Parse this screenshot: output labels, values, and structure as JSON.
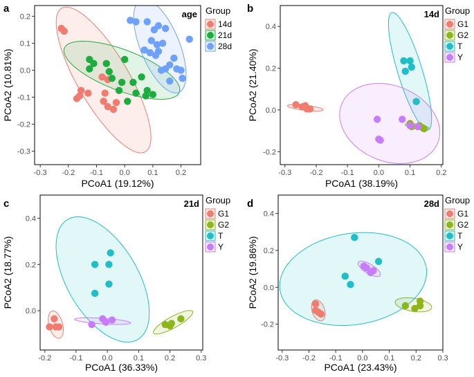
{
  "chart_data": [
    {
      "panel": "a",
      "type": "scatter",
      "title": "age",
      "xlabel": "PCoA1 (19.12%)",
      "ylabel": "PCoA2 (10.81%)",
      "xlim": [
        -0.32,
        0.27
      ],
      "ylim": [
        -0.35,
        0.24
      ],
      "xticks": [
        -0.3,
        -0.2,
        -0.1,
        0.0,
        0.1,
        0.2
      ],
      "xtick_labels": [
        "-0.3",
        "-0.2",
        "-0.1",
        "0.0",
        "0.1",
        "0.2"
      ],
      "yticks": [
        -0.3,
        -0.2,
        -0.1,
        0.0,
        0.1,
        0.2
      ],
      "ytick_labels": [
        "-0.3",
        "-0.2",
        "-0.1",
        "0.0",
        "0.1",
        "0.2"
      ],
      "legend_title": "Group",
      "groups": [
        {
          "name": "14d",
          "color": "#F07C70",
          "ellipse": {
            "cx": -0.075,
            "cy": -0.036,
            "rx": 0.305,
            "ry": 0.092,
            "angle_deg": -61
          },
          "points": [
            [
              -0.225,
              0.155
            ],
            [
              -0.215,
              0.145
            ],
            [
              -0.155,
              -0.075
            ],
            [
              -0.16,
              -0.095
            ],
            [
              -0.17,
              -0.105
            ],
            [
              -0.13,
              -0.085
            ],
            [
              -0.08,
              -0.025
            ],
            [
              -0.06,
              -0.035
            ],
            [
              -0.07,
              -0.085
            ],
            [
              -0.075,
              -0.115
            ],
            [
              -0.06,
              -0.135
            ],
            [
              -0.04,
              -0.145
            ],
            [
              -0.03,
              -0.12
            ]
          ]
        },
        {
          "name": "21d",
          "color": "#1DAD3F",
          "ellipse": {
            "cx": -0.01,
            "cy": 0.0,
            "rx": 0.22,
            "ry": 0.075,
            "angle_deg": -22
          },
          "points": [
            [
              -0.125,
              0.04
            ],
            [
              -0.11,
              0.025
            ],
            [
              -0.125,
              0.005
            ],
            [
              -0.065,
              0.025
            ],
            [
              -0.055,
              -0.005
            ],
            [
              -0.045,
              -0.03
            ],
            [
              -0.02,
              -0.075
            ],
            [
              -0.01,
              -0.045
            ],
            [
              0.0,
              0.04
            ],
            [
              0.01,
              -0.115
            ],
            [
              0.03,
              -0.045
            ],
            [
              0.04,
              -0.085
            ],
            [
              0.06,
              -0.025
            ],
            [
              0.08,
              -0.075
            ],
            [
              0.1,
              -0.09
            ],
            [
              0.075,
              -0.095
            ]
          ]
        },
        {
          "name": "28d",
          "color": "#6EA1FA",
          "ellipse": {
            "cx": 0.125,
            "cy": 0.09,
            "rx": 0.185,
            "ry": 0.07,
            "angle_deg": -69
          },
          "points": [
            [
              0.02,
              0.185
            ],
            [
              0.04,
              0.18
            ],
            [
              0.08,
              0.18
            ],
            [
              0.105,
              0.15
            ],
            [
              0.12,
              0.165
            ],
            [
              0.145,
              0.155
            ],
            [
              0.095,
              0.11
            ],
            [
              0.115,
              0.095
            ],
            [
              0.135,
              0.1
            ],
            [
              0.23,
              0.115
            ],
            [
              0.07,
              0.075
            ],
            [
              0.12,
              0.07
            ],
            [
              0.09,
              0.065
            ],
            [
              0.11,
              0.055
            ],
            [
              0.175,
              0.045
            ],
            [
              0.145,
              0.005
            ],
            [
              0.16,
              0.02
            ],
            [
              0.185,
              0.005
            ],
            [
              0.2,
              0.0
            ],
            [
              0.205,
              -0.03
            ],
            [
              0.13,
              0.0
            ],
            [
              0.16,
              -0.04
            ]
          ]
        }
      ]
    },
    {
      "panel": "b",
      "type": "scatter",
      "title": "14d",
      "xlabel": "PCoA1 (38.19%)",
      "ylabel": "PCoA2 (21.40%)",
      "xlim": [
        -0.315,
        0.205
      ],
      "ylim": [
        -0.262,
        0.5
      ],
      "xticks": [
        -0.3,
        -0.2,
        -0.1,
        0.0,
        0.1,
        0.2
      ],
      "xtick_labels": [
        "-0.3",
        "-0.2",
        "-0.1",
        "0.0",
        "0.1",
        "0.2"
      ],
      "yticks": [
        -0.2,
        0.0,
        0.2,
        0.4
      ],
      "ytick_labels": [
        "-0.2",
        "0.0",
        "0.2",
        "0.4"
      ],
      "legend_title": "Group",
      "groups": [
        {
          "name": "G1",
          "color": "#F07C70",
          "ellipse": {
            "cx": -0.235,
            "cy": 0.01,
            "rx": 0.058,
            "ry": 0.012,
            "angle_deg": -10
          },
          "points": [
            [
              -0.265,
              0.025
            ],
            [
              -0.245,
              0.015
            ],
            [
              -0.235,
              0.02
            ],
            [
              -0.22,
              0.005
            ],
            [
              -0.23,
              0.005
            ]
          ]
        },
        {
          "name": "G2",
          "color": "#8DB51C",
          "ellipse": {
            "cx": 0.123,
            "cy": -0.08,
            "rx": 0.04,
            "ry": 0.012,
            "angle_deg": -15
          },
          "points": [
            [
              0.1,
              -0.065
            ],
            [
              0.105,
              -0.08
            ],
            [
              0.13,
              -0.075
            ],
            [
              0.14,
              -0.085
            ],
            [
              0.145,
              -0.09
            ]
          ]
        },
        {
          "name": "T",
          "color": "#20BEC6",
          "ellipse": {
            "cx": 0.1,
            "cy": 0.185,
            "rx": 0.287,
            "ry": 0.04,
            "angle_deg": -78.6
          },
          "points": [
            [
              0.08,
              0.235
            ],
            [
              0.1,
              0.235
            ],
            [
              0.085,
              0.185
            ],
            [
              0.105,
              0.205
            ],
            [
              0.12,
              0.04
            ]
          ]
        },
        {
          "name": "Y",
          "color": "#C77CFA",
          "ellipse": {
            "cx": 0.035,
            "cy": -0.065,
            "rx": 0.15,
            "ry": 0.2,
            "angle_deg": 25
          },
          "points": [
            [
              -0.005,
              -0.045
            ],
            [
              0.0,
              -0.14
            ],
            [
              0.005,
              -0.145
            ],
            [
              0.075,
              -0.045
            ],
            [
              0.1,
              -0.075
            ],
            [
              0.125,
              -0.08
            ]
          ]
        }
      ]
    },
    {
      "panel": "c",
      "type": "scatter",
      "title": "21d",
      "xlabel": "PCoA1 (36.33%)",
      "ylabel": "PCoA2 (18.77%)",
      "xlim": [
        -0.215,
        0.305
      ],
      "ylim": [
        -0.17,
        0.5
      ],
      "xticks": [
        -0.2,
        -0.1,
        0.0,
        0.1,
        0.2,
        0.3
      ],
      "xtick_labels": [
        "-0.2",
        "-0.1",
        "0.0",
        "0.1",
        "0.2",
        "0.3"
      ],
      "yticks": [
        0.0,
        0.2,
        0.4
      ],
      "ytick_labels": [
        "0.0",
        "0.2",
        "0.4"
      ],
      "legend_title": "Group",
      "groups": [
        {
          "name": "G1",
          "color": "#F07C70",
          "ellipse": {
            "cx": -0.165,
            "cy": -0.06,
            "rx": 0.06,
            "ry": 0.022,
            "angle_deg": -80
          },
          "points": [
            [
              -0.185,
              -0.07
            ],
            [
              -0.17,
              -0.035
            ],
            [
              -0.165,
              -0.07
            ],
            [
              -0.155,
              -0.07
            ]
          ]
        },
        {
          "name": "G2",
          "color": "#8DB51C",
          "ellipse": {
            "cx": 0.21,
            "cy": -0.05,
            "rx": 0.078,
            "ry": 0.022,
            "angle_deg": 38
          },
          "points": [
            [
              0.185,
              -0.06
            ],
            [
              0.2,
              -0.065
            ],
            [
              0.205,
              -0.055
            ],
            [
              0.235,
              -0.035
            ]
          ]
        },
        {
          "name": "T",
          "color": "#20BEC6",
          "ellipse": {
            "cx": -0.015,
            "cy": 0.135,
            "rx": 0.285,
            "ry": 0.12,
            "angle_deg": -70
          },
          "points": [
            [
              -0.04,
              0.2
            ],
            [
              -0.04,
              0.075
            ],
            [
              0.005,
              0.115
            ],
            [
              0.01,
              0.25
            ],
            [
              0.005,
              0.2
            ]
          ]
        },
        {
          "name": "Y",
          "color": "#C77CFA",
          "ellipse": {
            "cx": -0.015,
            "cy": -0.045,
            "rx": 0.09,
            "ry": 0.012,
            "angle_deg": -5
          },
          "points": [
            [
              -0.05,
              -0.06
            ],
            [
              -0.015,
              -0.035
            ],
            [
              -0.005,
              -0.05
            ],
            [
              0.015,
              -0.04
            ]
          ]
        }
      ]
    },
    {
      "panel": "d",
      "type": "scatter",
      "title": "28d",
      "xlabel": "PCoA1 (23.43%)",
      "ylabel": "PCoA2 (19.86%)",
      "xlim": [
        -0.315,
        0.3
      ],
      "ylim": [
        -0.34,
        0.5
      ],
      "xticks": [
        -0.3,
        -0.2,
        -0.1,
        0.0,
        0.1,
        0.2,
        0.3
      ],
      "xtick_labels": [
        "-0.3",
        "-0.2",
        "-0.1",
        "0.0",
        "0.1",
        "0.2",
        "0.3"
      ],
      "yticks": [
        -0.2,
        0.0,
        0.2,
        0.4
      ],
      "ytick_labels": [
        "-0.2",
        "0.0",
        "0.2",
        "0.4"
      ],
      "legend_title": "Group",
      "groups": [
        {
          "name": "G1",
          "color": "#F07C70",
          "ellipse": {
            "cx": -0.165,
            "cy": -0.125,
            "rx": 0.058,
            "ry": 0.024,
            "angle_deg": -80
          },
          "points": [
            [
              -0.175,
              -0.09
            ],
            [
              -0.175,
              -0.125
            ],
            [
              -0.165,
              -0.135
            ],
            [
              -0.155,
              -0.145
            ]
          ]
        },
        {
          "name": "G2",
          "color": "#8DB51C",
          "ellipse": {
            "cx": 0.19,
            "cy": -0.095,
            "rx": 0.07,
            "ry": 0.035,
            "angle_deg": -15
          },
          "points": [
            [
              0.16,
              -0.1
            ],
            [
              0.195,
              -0.115
            ],
            [
              0.215,
              -0.1
            ],
            [
              0.215,
              -0.075
            ]
          ]
        },
        {
          "name": "T",
          "color": "#20BEC6",
          "ellipse": {
            "cx": -0.035,
            "cy": 0.045,
            "rx": 0.285,
            "ry": 0.24,
            "angle_deg": 30
          },
          "points": [
            [
              -0.065,
              0.06
            ],
            [
              -0.045,
              0.015
            ],
            [
              -0.03,
              0.27
            ],
            [
              0.06,
              0.14
            ]
          ]
        },
        {
          "name": "Y",
          "color": "#C77CFA",
          "ellipse": {
            "cx": 0.025,
            "cy": 0.1,
            "rx": 0.055,
            "ry": 0.022,
            "angle_deg": -45
          },
          "points": [
            [
              0.005,
              0.115
            ],
            [
              0.015,
              0.105
            ],
            [
              0.03,
              0.08
            ],
            [
              0.04,
              0.09
            ]
          ]
        }
      ]
    }
  ]
}
